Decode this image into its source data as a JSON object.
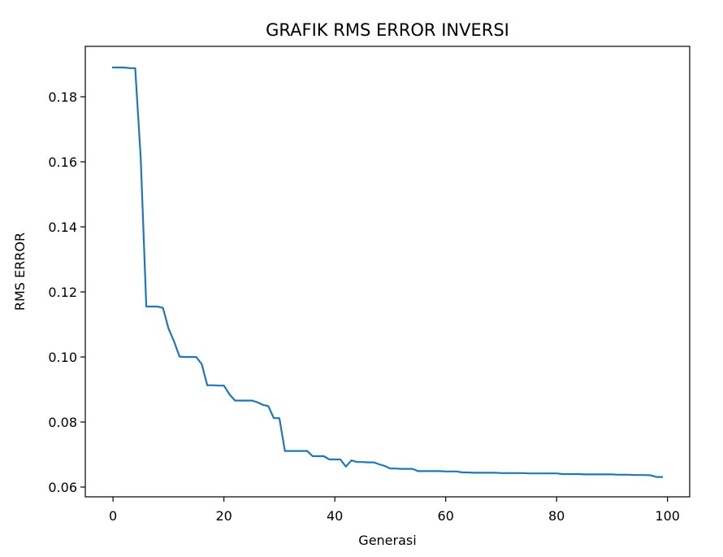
{
  "chart_data": {
    "type": "line",
    "title": "GRAFIK RMS ERROR INVERSI",
    "xlabel": "Generasi",
    "ylabel": "RMS ERROR",
    "xlim": [
      -5,
      104
    ],
    "ylim": [
      0.057,
      0.1955
    ],
    "xticks": [
      0,
      20,
      40,
      60,
      80,
      100
    ],
    "yticks": [
      0.06,
      0.08,
      0.1,
      0.12,
      0.14,
      0.16,
      0.18
    ],
    "xtick_labels": [
      "0",
      "20",
      "40",
      "60",
      "80",
      "100"
    ],
    "ytick_labels": [
      "0.06",
      "0.08",
      "0.10",
      "0.12",
      "0.14",
      "0.16",
      "0.18"
    ],
    "grid": false,
    "series": [
      {
        "color": "#1f77b4",
        "x": [
          0,
          1,
          2,
          3,
          4,
          5,
          6,
          7,
          8,
          9,
          10,
          11,
          12,
          13,
          14,
          15,
          16,
          17,
          18,
          19,
          20,
          21,
          22,
          23,
          24,
          25,
          26,
          27,
          28,
          29,
          30,
          31,
          32,
          33,
          34,
          35,
          36,
          37,
          38,
          39,
          40,
          41,
          42,
          43,
          44,
          45,
          46,
          47,
          48,
          49,
          50,
          51,
          52,
          53,
          54,
          55,
          56,
          57,
          58,
          59,
          60,
          61,
          62,
          63,
          64,
          65,
          66,
          67,
          68,
          69,
          70,
          71,
          72,
          73,
          74,
          75,
          76,
          77,
          78,
          79,
          80,
          81,
          82,
          83,
          84,
          85,
          86,
          87,
          88,
          89,
          90,
          91,
          92,
          93,
          94,
          95,
          96,
          97,
          98,
          99
        ],
        "values": [
          0.189,
          0.189,
          0.189,
          0.1888,
          0.1888,
          0.161,
          0.1155,
          0.1155,
          0.1155,
          0.1151,
          0.1088,
          0.1048,
          0.1001,
          0.1,
          0.1,
          0.1,
          0.0978,
          0.0913,
          0.0913,
          0.0912,
          0.0912,
          0.0885,
          0.0866,
          0.0866,
          0.0866,
          0.0866,
          0.0861,
          0.0853,
          0.0849,
          0.0812,
          0.0812,
          0.0711,
          0.0711,
          0.0711,
          0.0711,
          0.0711,
          0.0695,
          0.0695,
          0.0695,
          0.0685,
          0.0685,
          0.0685,
          0.0663,
          0.0682,
          0.0677,
          0.0677,
          0.0676,
          0.0676,
          0.067,
          0.0665,
          0.0657,
          0.0657,
          0.0656,
          0.0656,
          0.0656,
          0.0649,
          0.0649,
          0.0649,
          0.0649,
          0.0649,
          0.0648,
          0.0648,
          0.0648,
          0.0645,
          0.0645,
          0.0644,
          0.0644,
          0.0644,
          0.0644,
          0.0644,
          0.0643,
          0.0643,
          0.0643,
          0.0643,
          0.0643,
          0.0642,
          0.0642,
          0.0642,
          0.0642,
          0.0642,
          0.0642,
          0.064,
          0.064,
          0.064,
          0.064,
          0.0639,
          0.0639,
          0.0639,
          0.0639,
          0.0639,
          0.0639,
          0.0638,
          0.0638,
          0.0638,
          0.0637,
          0.0637,
          0.0637,
          0.0636,
          0.0631,
          0.0631
        ]
      }
    ]
  }
}
